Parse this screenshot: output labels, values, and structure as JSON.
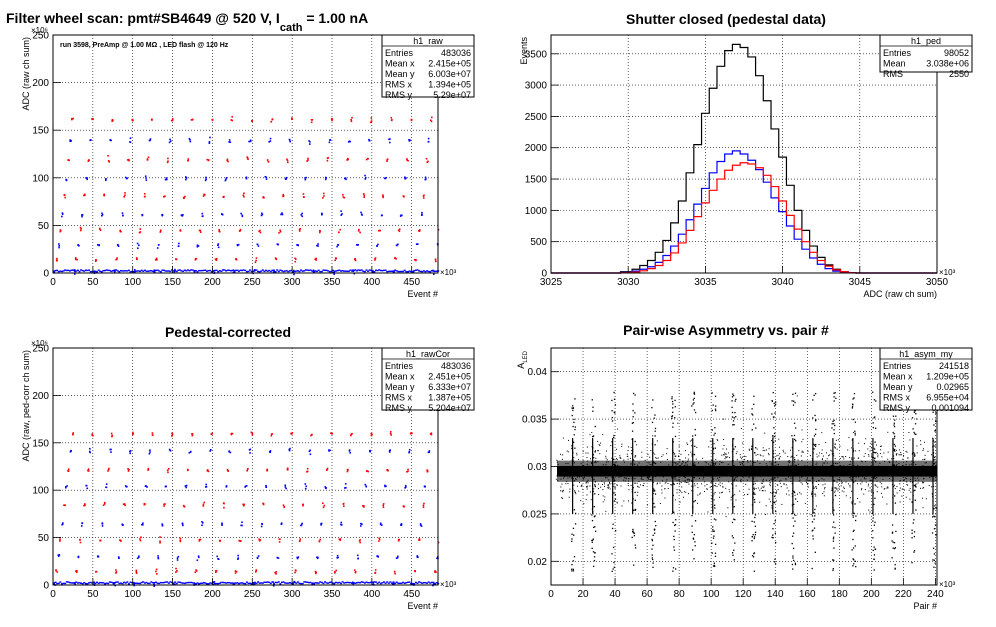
{
  "panels": [
    {
      "title_html": [
        "Filter wheel scan: pmt#SB4649 @   520 V, I",
        "cath",
        "  = 1.00 nA"
      ],
      "subtitle": "run 3598, PreAmp @ 1.00 MΩ , LED flash @  120 Hz",
      "stats": {
        "name": "h1_raw",
        "rows": [
          [
            "Entries",
            "483036"
          ],
          [
            "Mean x",
            "2.415e+05"
          ],
          [
            "Mean y",
            "6.003e+07"
          ],
          [
            "RMS x",
            "1.394e+05"
          ],
          [
            "RMS y",
            "5.29e+07"
          ]
        ]
      }
    },
    {
      "title": "Shutter closed (pedestal data)",
      "stats": {
        "name": "h1_ped",
        "rows": [
          [
            "Entries",
            "98052"
          ],
          [
            "Mean",
            "3.038e+06"
          ],
          [
            "RMS",
            "2550"
          ]
        ]
      }
    },
    {
      "title": "Pedestal-corrected",
      "stats": {
        "name": "h1_rawCor",
        "rows": [
          [
            "Entries",
            "483036"
          ],
          [
            "Mean x",
            "2.451e+05"
          ],
          [
            "Mean y",
            "6.333e+07"
          ],
          [
            "RMS x",
            "1.387e+05"
          ],
          [
            "RMS y",
            "5.204e+07"
          ]
        ]
      }
    },
    {
      "title": "Pair-wise Asymmetry vs. pair #",
      "stats": {
        "name": "h1_asym_my",
        "rows": [
          [
            "Entries",
            "241518"
          ],
          [
            "Mean x",
            "1.209e+05"
          ],
          [
            "Mean y",
            "0.02965"
          ],
          [
            "RMS x",
            "6.955e+04"
          ],
          [
            "RMS y",
            "0.001094"
          ]
        ]
      }
    }
  ],
  "chart_data": [
    {
      "type": "scatter",
      "xlabel": "Event #",
      "ylabel": "ADC (raw ch sum)",
      "x_exponent": "×10³",
      "y_exponent": "×10⁶",
      "xlim": [
        0,
        483
      ],
      "ylim": [
        0,
        250
      ],
      "xticks": [
        "0",
        "50",
        "100",
        "150",
        "200",
        "250",
        "300",
        "350",
        "400",
        "450"
      ],
      "yticks": [
        "0",
        "50",
        "100",
        "150",
        "200",
        "250"
      ],
      "grid": true,
      "step_levels": [
        2,
        15,
        30,
        45,
        62,
        82,
        100,
        120,
        140,
        162
      ],
      "step_period_k": 25,
      "series": [
        {
          "name": "blue",
          "color": "#0000ff"
        },
        {
          "name": "red",
          "color": "#ff0000"
        }
      ]
    },
    {
      "type": "line",
      "xlabel": "ADC (raw ch sum)",
      "ylabel": "Events",
      "x_exponent": "×10³",
      "xlim": [
        3025,
        3050
      ],
      "ylim": [
        0,
        3800
      ],
      "xticks": [
        "3025",
        "3030",
        "3035",
        "3040",
        "3045",
        "3050"
      ],
      "yticks": [
        "0",
        "500",
        "1000",
        "1500",
        "2000",
        "2500",
        "3000",
        "3500"
      ],
      "grid": true,
      "x": [
        3025,
        3029,
        3030,
        3030.5,
        3031,
        3031.5,
        3032,
        3032.5,
        3033,
        3033.5,
        3034,
        3034.5,
        3035,
        3035.5,
        3036,
        3036.5,
        3037,
        3037.5,
        3038,
        3038.5,
        3039,
        3039.5,
        3040,
        3040.5,
        3041,
        3041.5,
        3042,
        3042.5,
        3043,
        3043.5,
        3044,
        3044.5,
        3045,
        3050
      ],
      "series": [
        {
          "name": "total",
          "color": "#000000",
          "values": [
            0,
            0,
            20,
            60,
            120,
            200,
            330,
            520,
            800,
            1150,
            1600,
            2050,
            2550,
            2950,
            3300,
            3550,
            3650,
            3600,
            3450,
            3150,
            2750,
            2300,
            1850,
            1400,
            1000,
            680,
            430,
            250,
            130,
            60,
            20,
            5,
            0,
            0
          ]
        },
        {
          "name": "blue",
          "color": "#0000ff",
          "values": [
            0,
            0,
            10,
            30,
            60,
            100,
            170,
            280,
            430,
            620,
            850,
            1100,
            1350,
            1600,
            1780,
            1900,
            1950,
            1900,
            1800,
            1650,
            1450,
            1200,
            980,
            750,
            540,
            380,
            240,
            140,
            70,
            30,
            10,
            2,
            0,
            0
          ]
        },
        {
          "name": "red",
          "color": "#ff0000",
          "values": [
            0,
            0,
            5,
            15,
            35,
            70,
            120,
            200,
            320,
            480,
            680,
            900,
            1120,
            1320,
            1500,
            1640,
            1720,
            1760,
            1740,
            1680,
            1560,
            1380,
            1150,
            920,
            700,
            500,
            330,
            200,
            110,
            50,
            20,
            5,
            0,
            0
          ]
        }
      ]
    },
    {
      "type": "scatter",
      "xlabel": "Event #",
      "ylabel": "ADC (raw, ped-corr ch sum)",
      "x_exponent": "×10³",
      "y_exponent": "×10⁶",
      "xlim": [
        0,
        483
      ],
      "ylim": [
        0,
        250
      ],
      "xticks": [
        "0",
        "50",
        "100",
        "150",
        "200",
        "250",
        "300",
        "350",
        "400",
        "450"
      ],
      "yticks": [
        "0",
        "50",
        "100",
        "150",
        "200",
        "250"
      ],
      "grid": true,
      "step_levels": [
        2,
        15,
        30,
        48,
        65,
        85,
        105,
        122,
        142,
        160
      ],
      "step_period_k": 25,
      "series": [
        {
          "name": "blue",
          "color": "#0000ff"
        },
        {
          "name": "red",
          "color": "#ff0000"
        }
      ]
    },
    {
      "type": "scatter",
      "xlabel": "Pair #",
      "ylabel": "A_LED",
      "x_exponent": "×10³",
      "xlim": [
        0,
        241
      ],
      "ylim": [
        0.0175,
        0.0425
      ],
      "xticks": [
        "0",
        "20",
        "40",
        "60",
        "80",
        "100",
        "120",
        "140",
        "160",
        "180",
        "200",
        "220",
        "240"
      ],
      "yticks": [
        "0.02",
        "0.025",
        "0.03",
        "0.035",
        "0.04"
      ],
      "grid": true,
      "band_center": 0.0295,
      "band_halfwidth": 0.0007,
      "spike_every_k": 12.5,
      "spike_range": [
        0.019,
        0.038
      ],
      "series": [
        {
          "name": "asym",
          "color": "#000000"
        }
      ]
    }
  ]
}
